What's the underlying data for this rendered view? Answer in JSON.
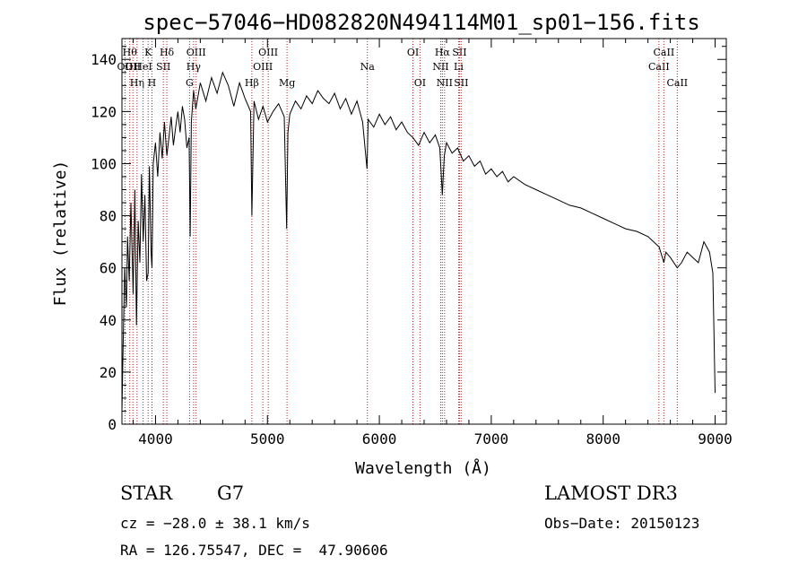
{
  "chart_data": {
    "type": "line",
    "title": "spec−57046−HD082820N494114M01_sp01−156.fits",
    "xlabel": "Wavelength (Å)",
    "ylabel": "Flux (relative)",
    "xlim": [
      3700,
      9100
    ],
    "ylim": [
      0,
      148
    ],
    "xticks": [
      4000,
      5000,
      6000,
      7000,
      8000,
      9000
    ],
    "yticks": [
      0,
      20,
      40,
      60,
      80,
      100,
      120,
      140
    ],
    "grid": false,
    "series": [
      {
        "name": "spectrum",
        "x": [
          3700,
          3710,
          3725,
          3740,
          3750,
          3765,
          3780,
          3800,
          3815,
          3830,
          3845,
          3860,
          3875,
          3890,
          3905,
          3920,
          3934,
          3945,
          3960,
          3968,
          3980,
          4000,
          4020,
          4040,
          4060,
          4080,
          4101,
          4120,
          4140,
          4160,
          4180,
          4200,
          4220,
          4240,
          4260,
          4280,
          4300,
          4310,
          4320,
          4340,
          4360,
          4380,
          4400,
          4450,
          4500,
          4550,
          4600,
          4650,
          4700,
          4750,
          4800,
          4850,
          4861,
          4880,
          4920,
          4960,
          5000,
          5050,
          5100,
          5150,
          5172,
          5183,
          5200,
          5250,
          5300,
          5350,
          5400,
          5450,
          5500,
          5550,
          5600,
          5650,
          5700,
          5750,
          5800,
          5850,
          5890,
          5900,
          5950,
          6000,
          6050,
          6100,
          6150,
          6200,
          6250,
          6300,
          6350,
          6400,
          6450,
          6500,
          6540,
          6563,
          6580,
          6600,
          6650,
          6700,
          6750,
          6800,
          6850,
          6900,
          6950,
          7000,
          7050,
          7100,
          7150,
          7200,
          7300,
          7400,
          7500,
          7600,
          7700,
          7800,
          7900,
          8000,
          8100,
          8200,
          8300,
          8400,
          8450,
          8500,
          8542,
          8560,
          8600,
          8662,
          8700,
          8750,
          8800,
          8850,
          8900,
          8950,
          8980,
          9000
        ],
        "y": [
          5,
          28,
          60,
          45,
          72,
          55,
          85,
          50,
          90,
          38,
          78,
          62,
          96,
          70,
          88,
          55,
          58,
          99,
          66,
          60,
          100,
          108,
          95,
          112,
          102,
          116,
          103,
          110,
          118,
          107,
          114,
          120,
          112,
          122,
          117,
          106,
          110,
          72,
          116,
          128,
          121,
          126,
          131,
          124,
          133,
          127,
          135,
          130,
          122,
          131,
          125,
          120,
          80,
          124,
          117,
          122,
          116,
          120,
          123,
          118,
          75,
          112,
          119,
          124,
          121,
          126,
          123,
          128,
          125,
          123,
          127,
          121,
          125,
          119,
          124,
          116,
          98,
          117,
          114,
          119,
          115,
          118,
          113,
          116,
          112,
          110,
          107,
          112,
          108,
          111,
          106,
          88,
          103,
          108,
          104,
          106,
          101,
          103,
          99,
          101,
          96,
          98,
          95,
          97,
          93,
          95,
          92,
          90,
          88,
          86,
          84,
          83,
          81,
          79,
          77,
          75,
          74,
          72,
          70,
          68,
          62,
          66,
          64,
          60,
          62,
          66,
          64,
          62,
          70,
          66,
          58,
          12
        ]
      }
    ],
    "line_markers": [
      {
        "wavelength": 3727,
        "label": "OII",
        "tier": 2
      },
      {
        "wavelength": 3770,
        "label": "Hθ",
        "tier": 1
      },
      {
        "wavelength": 3798,
        "label": "OII",
        "tier": 2
      },
      {
        "wavelength": 3835,
        "label": "Hη",
        "tier": 3
      },
      {
        "wavelength": 3889,
        "label": "HeI",
        "tier": 2
      },
      {
        "wavelength": 3934,
        "label": "K",
        "tier": 1
      },
      {
        "wavelength": 3968,
        "label": "H",
        "tier": 3
      },
      {
        "wavelength": 4070,
        "label": "SII",
        "tier": 2
      },
      {
        "wavelength": 4101,
        "label": "Hδ",
        "tier": 1
      },
      {
        "wavelength": 4304,
        "label": "G",
        "tier": 3
      },
      {
        "wavelength": 4340,
        "label": "Hγ",
        "tier": 2
      },
      {
        "wavelength": 4363,
        "label": "OIII",
        "tier": 1
      },
      {
        "wavelength": 4861,
        "label": "Hβ",
        "tier": 3
      },
      {
        "wavelength": 4959,
        "label": "OIII",
        "tier": 2
      },
      {
        "wavelength": 5007,
        "label": "OIII",
        "tier": 1
      },
      {
        "wavelength": 5175,
        "label": "Mg",
        "tier": 3
      },
      {
        "wavelength": 5893,
        "label": "Na",
        "tier": 2
      },
      {
        "wavelength": 6300,
        "label": "OI",
        "tier": 1
      },
      {
        "wavelength": 6363,
        "label": "OI",
        "tier": 3
      },
      {
        "wavelength": 6548,
        "label": "NII",
        "tier": 2
      },
      {
        "wavelength": 6563,
        "label": "Hα",
        "tier": 1
      },
      {
        "wavelength": 6583,
        "label": "NII",
        "tier": 3
      },
      {
        "wavelength": 6716,
        "label": "SII",
        "tier": 1
      },
      {
        "wavelength": 6708,
        "label": "Li",
        "tier": 2
      },
      {
        "wavelength": 6731,
        "label": "SII",
        "tier": 3
      },
      {
        "wavelength": 8498,
        "label": "CaII",
        "tier": 2
      },
      {
        "wavelength": 8542,
        "label": "CaII",
        "tier": 1
      },
      {
        "wavelength": 8662,
        "label": "CaII",
        "tier": 3
      }
    ]
  },
  "footer": {
    "object_class": "STAR",
    "subclass": "G7",
    "survey": "LAMOST DR3",
    "redshift": "cz = −28.0 ± 38.1 km/s",
    "obs_date": "Obs−Date: 20150123",
    "coords": "RA = 126.75547, DEC =  47.90606"
  },
  "colors": {
    "spectrum": "#000000",
    "marker_line": "#b22222",
    "axis": "#000000"
  }
}
